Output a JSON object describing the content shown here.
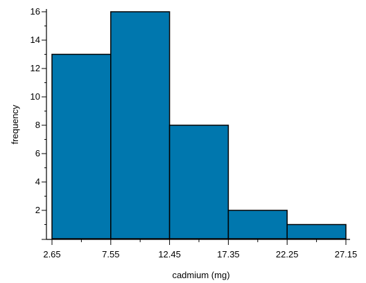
{
  "chart_data": {
    "type": "bar",
    "title": "",
    "xlabel": "cadmium (mg)",
    "ylabel": "frequency",
    "bin_edges": [
      2.65,
      7.55,
      12.45,
      17.35,
      22.25,
      27.15
    ],
    "x_tick_labels": [
      "2.65",
      "7.55",
      "12.45",
      "17.35",
      "22.25",
      "27.15"
    ],
    "values": [
      13,
      16,
      8,
      2,
      1
    ],
    "y_ticks": [
      2,
      4,
      6,
      8,
      10,
      12,
      14,
      16
    ],
    "y_tick_labels": [
      "2",
      "4",
      "6",
      "8",
      "10",
      "12",
      "14",
      "16"
    ],
    "xlim": [
      2.65,
      27.15
    ],
    "ylim": [
      0,
      16
    ],
    "grid": false,
    "legend": "none",
    "bar_color": "#0077AE",
    "bar_edge_color": "#000000"
  }
}
